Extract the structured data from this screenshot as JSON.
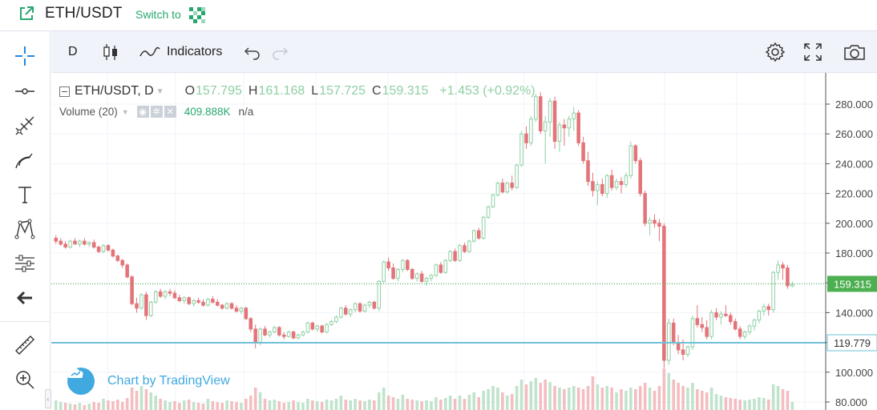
{
  "header": {
    "pair": "ETH/USDT",
    "switch_label": "Switch to",
    "icons": [
      "external-link-icon",
      "qr-grid-icon"
    ]
  },
  "toolbar": {
    "interval": "D",
    "indicators_label": "Indicators",
    "icons": [
      "candles-icon",
      "indicators-icon",
      "undo-icon",
      "redo-icon",
      "settings-icon",
      "fullscreen-icon",
      "camera-icon"
    ]
  },
  "left_tools": [
    "crosshair-icon",
    "horizontal-line-icon",
    "pitchfork-icon",
    "brush-icon",
    "text-icon",
    "pattern-icon",
    "prediction-icon",
    "back-arrow-icon",
    "ruler-icon",
    "zoom-in-icon"
  ],
  "legend": {
    "symbol": "ETH/USDT, D",
    "o_label": "O",
    "o": "157.795",
    "h_label": "H",
    "h": "161.168",
    "l_label": "L",
    "l": "157.725",
    "c_label": "C",
    "c": "159.315",
    "change": "+1.453 (+0.92%)",
    "volume_label": "Volume (20)",
    "volume_value": "409.888K",
    "volume_na": "n/a"
  },
  "branding": "Chart by TradingView",
  "colors": {
    "up": "#8fd0a4",
    "down": "#e3757a",
    "up_vol": "#bfe3cb",
    "down_vol": "#f4bdc0",
    "last_price": "#4caf50",
    "hline": "#70c0d8",
    "accent": "#27a76f"
  },
  "chart_data": {
    "type": "candlestick",
    "y_ticks": [
      "280.000",
      "260.000",
      "240.000",
      "220.000",
      "200.000",
      "180.000",
      "160.000",
      "140.000",
      "120.000",
      "100.000",
      "80.000"
    ],
    "ylim": [
      80,
      290
    ],
    "last_price_label": "159.315",
    "hline_label": "119.779",
    "last_price": 159.315,
    "hline_price": 119.779,
    "candles": [
      [
        190,
        192,
        186,
        188
      ],
      [
        188,
        190,
        185,
        186
      ],
      [
        186,
        188,
        183,
        184
      ],
      [
        184,
        189,
        183,
        188
      ],
      [
        188,
        190,
        186,
        186
      ],
      [
        186,
        189,
        184,
        188
      ],
      [
        188,
        190,
        185,
        186
      ],
      [
        186,
        188,
        184,
        187
      ],
      [
        187,
        189,
        183,
        184
      ],
      [
        184,
        185,
        180,
        181
      ],
      [
        181,
        186,
        180,
        185
      ],
      [
        185,
        186,
        181,
        182
      ],
      [
        182,
        183,
        177,
        178
      ],
      [
        178,
        179,
        174,
        175
      ],
      [
        175,
        176,
        170,
        172
      ],
      [
        172,
        173,
        163,
        164
      ],
      [
        164,
        165,
        145,
        146
      ],
      [
        146,
        150,
        140,
        143
      ],
      [
        143,
        153,
        142,
        152
      ],
      [
        152,
        154,
        135,
        138
      ],
      [
        138,
        148,
        137,
        147
      ],
      [
        147,
        155,
        146,
        154
      ],
      [
        154,
        156,
        150,
        151
      ],
      [
        151,
        155,
        149,
        154
      ],
      [
        154,
        156,
        151,
        153
      ],
      [
        153,
        155,
        149,
        150
      ],
      [
        150,
        152,
        147,
        148
      ],
      [
        148,
        151,
        146,
        150
      ],
      [
        150,
        151,
        145,
        146
      ],
      [
        146,
        149,
        144,
        148
      ],
      [
        148,
        150,
        146,
        147
      ],
      [
        147,
        149,
        144,
        145
      ],
      [
        145,
        150,
        144,
        149
      ],
      [
        149,
        151,
        146,
        147
      ],
      [
        147,
        149,
        144,
        145
      ],
      [
        145,
        146,
        142,
        143
      ],
      [
        143,
        147,
        142,
        146
      ],
      [
        146,
        147,
        142,
        143
      ],
      [
        143,
        145,
        140,
        141
      ],
      [
        141,
        144,
        139,
        143
      ],
      [
        143,
        144,
        135,
        136
      ],
      [
        136,
        137,
        127,
        129
      ],
      [
        129,
        132,
        116,
        120
      ],
      [
        120,
        130,
        118,
        129
      ],
      [
        129,
        131,
        124,
        125
      ],
      [
        125,
        128,
        123,
        127
      ],
      [
        127,
        131,
        126,
        130
      ],
      [
        130,
        131,
        124,
        125
      ],
      [
        125,
        127,
        122,
        124
      ],
      [
        124,
        128,
        123,
        127
      ],
      [
        127,
        128,
        122,
        123
      ],
      [
        123,
        126,
        122,
        125
      ],
      [
        125,
        128,
        124,
        127
      ],
      [
        127,
        134,
        126,
        133
      ],
      [
        133,
        134,
        128,
        129
      ],
      [
        129,
        132,
        127,
        131
      ],
      [
        131,
        132,
        126,
        127
      ],
      [
        127,
        133,
        126,
        132
      ],
      [
        132,
        135,
        131,
        134
      ],
      [
        134,
        138,
        133,
        137
      ],
      [
        137,
        144,
        136,
        143
      ],
      [
        143,
        145,
        138,
        139
      ],
      [
        139,
        143,
        137,
        142
      ],
      [
        142,
        147,
        140,
        146
      ],
      [
        146,
        147,
        140,
        141
      ],
      [
        141,
        146,
        140,
        145
      ],
      [
        145,
        148,
        143,
        147
      ],
      [
        147,
        148,
        142,
        143
      ],
      [
        143,
        162,
        141,
        161
      ],
      [
        161,
        175,
        160,
        174
      ],
      [
        174,
        177,
        168,
        170
      ],
      [
        170,
        173,
        162,
        163
      ],
      [
        163,
        170,
        161,
        169
      ],
      [
        169,
        176,
        167,
        175
      ],
      [
        175,
        176,
        168,
        169
      ],
      [
        169,
        170,
        162,
        163
      ],
      [
        163,
        167,
        161,
        166
      ],
      [
        166,
        168,
        160,
        161
      ],
      [
        161,
        164,
        158,
        163
      ],
      [
        163,
        166,
        161,
        165
      ],
      [
        165,
        173,
        164,
        172
      ],
      [
        172,
        174,
        166,
        167
      ],
      [
        167,
        176,
        166,
        175
      ],
      [
        175,
        182,
        174,
        181
      ],
      [
        181,
        183,
        174,
        175
      ],
      [
        175,
        186,
        174,
        185
      ],
      [
        185,
        187,
        180,
        181
      ],
      [
        181,
        189,
        180,
        188
      ],
      [
        188,
        196,
        187,
        195
      ],
      [
        195,
        197,
        189,
        190
      ],
      [
        190,
        205,
        189,
        204
      ],
      [
        204,
        212,
        203,
        211
      ],
      [
        211,
        220,
        210,
        219
      ],
      [
        219,
        228,
        218,
        227
      ],
      [
        227,
        230,
        220,
        221
      ],
      [
        221,
        228,
        220,
        227
      ],
      [
        227,
        232,
        222,
        224
      ],
      [
        224,
        240,
        223,
        239
      ],
      [
        239,
        262,
        238,
        260
      ],
      [
        260,
        265,
        250,
        254
      ],
      [
        254,
        272,
        252,
        270
      ],
      [
        270,
        287,
        268,
        285
      ],
      [
        285,
        288,
        260,
        262
      ],
      [
        262,
        272,
        240,
        268
      ],
      [
        268,
        284,
        258,
        282
      ],
      [
        282,
        285,
        250,
        255
      ],
      [
        255,
        268,
        248,
        266
      ],
      [
        266,
        270,
        252,
        264
      ],
      [
        264,
        272,
        258,
        270
      ],
      [
        270,
        278,
        262,
        274
      ],
      [
        274,
        276,
        252,
        254
      ],
      [
        254,
        258,
        240,
        242
      ],
      [
        242,
        248,
        225,
        228
      ],
      [
        228,
        234,
        218,
        222
      ],
      [
        222,
        228,
        212,
        226
      ],
      [
        226,
        230,
        218,
        220
      ],
      [
        220,
        233,
        217,
        232
      ],
      [
        232,
        236,
        222,
        224
      ],
      [
        224,
        230,
        222,
        228
      ],
      [
        228,
        231,
        220,
        226
      ],
      [
        226,
        234,
        224,
        232
      ],
      [
        232,
        255,
        230,
        252
      ],
      [
        252,
        253,
        240,
        242
      ],
      [
        242,
        244,
        218,
        220
      ],
      [
        220,
        222,
        198,
        200
      ],
      [
        200,
        204,
        192,
        202
      ],
      [
        202,
        206,
        197,
        200
      ],
      [
        200,
        203,
        188,
        198
      ],
      [
        198,
        200,
        103,
        108
      ],
      [
        108,
        136,
        105,
        133
      ],
      [
        133,
        136,
        118,
        120
      ],
      [
        120,
        125,
        112,
        115
      ],
      [
        115,
        122,
        108,
        112
      ],
      [
        112,
        118,
        110,
        117
      ],
      [
        117,
        138,
        115,
        136
      ],
      [
        136,
        145,
        130,
        132
      ],
      [
        132,
        137,
        127,
        130
      ],
      [
        130,
        135,
        122,
        124
      ],
      [
        124,
        142,
        122,
        140
      ],
      [
        140,
        143,
        135,
        137
      ],
      [
        137,
        141,
        132,
        139
      ],
      [
        139,
        145,
        137,
        138
      ],
      [
        138,
        140,
        132,
        134
      ],
      [
        134,
        136,
        128,
        129
      ],
      [
        129,
        131,
        122,
        124
      ],
      [
        124,
        128,
        122,
        127
      ],
      [
        127,
        132,
        125,
        131
      ],
      [
        131,
        136,
        128,
        135
      ],
      [
        135,
        142,
        133,
        141
      ],
      [
        141,
        146,
        138,
        144
      ],
      [
        144,
        146,
        138,
        142
      ],
      [
        142,
        168,
        140,
        167
      ],
      [
        167,
        175,
        162,
        172
      ],
      [
        172,
        174,
        162,
        170
      ],
      [
        170,
        172,
        156,
        158
      ],
      [
        158,
        161,
        157,
        159
      ]
    ],
    "volumes": [
      [
        12,
        1
      ],
      [
        10,
        1
      ],
      [
        9,
        0
      ],
      [
        8,
        1
      ],
      [
        7,
        0
      ],
      [
        9,
        1
      ],
      [
        6,
        0
      ],
      [
        8,
        1
      ],
      [
        10,
        0
      ],
      [
        9,
        0
      ],
      [
        14,
        1
      ],
      [
        12,
        0
      ],
      [
        11,
        0
      ],
      [
        13,
        0
      ],
      [
        10,
        0
      ],
      [
        15,
        0
      ],
      [
        28,
        0
      ],
      [
        24,
        0
      ],
      [
        30,
        1
      ],
      [
        26,
        0
      ],
      [
        22,
        1
      ],
      [
        18,
        1
      ],
      [
        14,
        0
      ],
      [
        12,
        1
      ],
      [
        10,
        1
      ],
      [
        11,
        0
      ],
      [
        9,
        0
      ],
      [
        12,
        1
      ],
      [
        13,
        0
      ],
      [
        10,
        1
      ],
      [
        9,
        0
      ],
      [
        8,
        0
      ],
      [
        14,
        1
      ],
      [
        11,
        0
      ],
      [
        10,
        0
      ],
      [
        9,
        0
      ],
      [
        12,
        1
      ],
      [
        11,
        0
      ],
      [
        10,
        0
      ],
      [
        9,
        1
      ],
      [
        14,
        0
      ],
      [
        18,
        0
      ],
      [
        28,
        0
      ],
      [
        22,
        1
      ],
      [
        14,
        0
      ],
      [
        12,
        1
      ],
      [
        13,
        1
      ],
      [
        11,
        0
      ],
      [
        9,
        0
      ],
      [
        10,
        1
      ],
      [
        12,
        0
      ],
      [
        10,
        1
      ],
      [
        9,
        1
      ],
      [
        14,
        1
      ],
      [
        12,
        0
      ],
      [
        11,
        1
      ],
      [
        10,
        0
      ],
      [
        13,
        1
      ],
      [
        12,
        1
      ],
      [
        14,
        1
      ],
      [
        18,
        1
      ],
      [
        13,
        0
      ],
      [
        12,
        1
      ],
      [
        14,
        1
      ],
      [
        12,
        0
      ],
      [
        11,
        1
      ],
      [
        13,
        1
      ],
      [
        12,
        0
      ],
      [
        22,
        1
      ],
      [
        28,
        1
      ],
      [
        18,
        0
      ],
      [
        16,
        0
      ],
      [
        14,
        1
      ],
      [
        19,
        1
      ],
      [
        14,
        0
      ],
      [
        13,
        0
      ],
      [
        12,
        1
      ],
      [
        11,
        0
      ],
      [
        12,
        1
      ],
      [
        11,
        1
      ],
      [
        16,
        1
      ],
      [
        13,
        0
      ],
      [
        15,
        1
      ],
      [
        18,
        1
      ],
      [
        14,
        0
      ],
      [
        18,
        1
      ],
      [
        14,
        0
      ],
      [
        19,
        1
      ],
      [
        22,
        1
      ],
      [
        16,
        0
      ],
      [
        24,
        1
      ],
      [
        26,
        1
      ],
      [
        30,
        1
      ],
      [
        28,
        1
      ],
      [
        22,
        0
      ],
      [
        18,
        1
      ],
      [
        20,
        0
      ],
      [
        30,
        1
      ],
      [
        38,
        1
      ],
      [
        32,
        0
      ],
      [
        36,
        1
      ],
      [
        40,
        1
      ],
      [
        34,
        0
      ],
      [
        38,
        0
      ],
      [
        35,
        1
      ],
      [
        30,
        0
      ],
      [
        28,
        1
      ],
      [
        26,
        0
      ],
      [
        28,
        1
      ],
      [
        30,
        1
      ],
      [
        28,
        0
      ],
      [
        26,
        0
      ],
      [
        30,
        0
      ],
      [
        42,
        0
      ],
      [
        32,
        1
      ],
      [
        28,
        0
      ],
      [
        30,
        1
      ],
      [
        28,
        0
      ],
      [
        22,
        1
      ],
      [
        26,
        0
      ],
      [
        24,
        1
      ],
      [
        28,
        1
      ],
      [
        26,
        0
      ],
      [
        30,
        0
      ],
      [
        34,
        0
      ],
      [
        28,
        1
      ],
      [
        24,
        0
      ],
      [
        30,
        0
      ],
      [
        52,
        0
      ],
      [
        46,
        1
      ],
      [
        38,
        0
      ],
      [
        34,
        0
      ],
      [
        30,
        0
      ],
      [
        28,
        1
      ],
      [
        34,
        1
      ],
      [
        26,
        0
      ],
      [
        24,
        0
      ],
      [
        22,
        0
      ],
      [
        28,
        1
      ],
      [
        20,
        1
      ],
      [
        18,
        1
      ],
      [
        16,
        0
      ],
      [
        15,
        0
      ],
      [
        14,
        0
      ],
      [
        13,
        0
      ],
      [
        12,
        1
      ],
      [
        13,
        1
      ],
      [
        14,
        1
      ],
      [
        16,
        1
      ],
      [
        15,
        1
      ],
      [
        13,
        0
      ],
      [
        32,
        1
      ],
      [
        30,
        1
      ],
      [
        26,
        0
      ],
      [
        24,
        0
      ],
      [
        10,
        1
      ]
    ]
  }
}
